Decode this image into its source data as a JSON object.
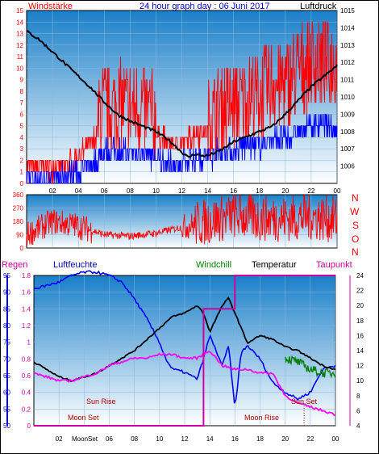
{
  "header": {
    "title": "24 hour graph day : 06 Juni 2017",
    "left_label": "Windstärke",
    "right_label": "Luftdruck"
  },
  "compass": [
    "N",
    "W",
    "S",
    "O",
    "N"
  ],
  "legend": {
    "regen": "Regen",
    "luftfeuchte": "Luftfeuchte",
    "windchill": "Windchill",
    "temperatur": "Temperatur",
    "taupunkt": "Taupunkt"
  },
  "annotations": {
    "sun_rise": "Sun Rise",
    "sun_set": "Sun Set",
    "moon_set": "Moon Set",
    "moon_rise": "Moon Rise",
    "moonset_axis": "MoonSet"
  },
  "colors": {
    "sky_top": "#1a7fc8",
    "sky_bottom": "#ffffff",
    "wind_gust": "#ff0000",
    "wind_avg": "#0000ff",
    "pressure": "#000000",
    "direction": "#ff0000",
    "humidity": "#0000ff",
    "temperature": "#000000",
    "dewpoint": "#ff00ff",
    "windchill": "#008000",
    "rain": "#d000a0"
  },
  "chart_data": [
    {
      "type": "line",
      "name": "wind_pressure",
      "x_ticks": [
        "02",
        "04",
        "06",
        "08",
        "10",
        "12",
        "14",
        "16",
        "18",
        "20",
        "22",
        "00"
      ],
      "ylim_left": [
        0,
        15
      ],
      "yticks_left": [
        0,
        1,
        2,
        3,
        4,
        5,
        6,
        7,
        8,
        9,
        10,
        11,
        12,
        13,
        14,
        15
      ],
      "ylim_right": [
        1005,
        1015
      ],
      "yticks_right": [
        1006,
        1007,
        1008,
        1009,
        1010,
        1011,
        1012,
        1013,
        1014,
        1015
      ],
      "series": [
        {
          "name": "Windstärke",
          "x": [
            0,
            1,
            2,
            3,
            4,
            5,
            6,
            7,
            8,
            9,
            10,
            11,
            12,
            13,
            14,
            15,
            16,
            17,
            18,
            19,
            20,
            21,
            22,
            23,
            24
          ],
          "y": [
            1,
            1,
            1,
            1,
            2,
            3,
            5,
            5,
            5,
            5,
            4,
            3,
            3,
            4,
            4,
            5,
            5,
            6,
            6,
            7,
            7,
            8,
            9,
            9,
            9
          ]
        },
        {
          "name": "Luftdruck",
          "x": [
            0,
            1,
            2,
            3,
            4,
            5,
            6,
            7,
            8,
            9,
            10,
            11,
            12,
            12.5,
            13,
            13.5,
            14,
            15,
            16,
            17,
            18,
            19,
            20,
            21,
            22,
            23,
            24
          ],
          "y": [
            1013.8,
            1013.3,
            1012.6,
            1011.9,
            1011.2,
            1010.5,
            1009.7,
            1009.0,
            1008.6,
            1008.3,
            1008.0,
            1007.5,
            1006.8,
            1006.5,
            1006.7,
            1006.6,
            1006.6,
            1006.9,
            1007.4,
            1007.7,
            1008.0,
            1008.3,
            1009.0,
            1009.8,
            1010.6,
            1011.2,
            1011.8
          ]
        }
      ]
    },
    {
      "type": "line",
      "name": "wind_direction",
      "ylim": [
        0,
        360
      ],
      "yticks": [
        0,
        90,
        180,
        270,
        360
      ],
      "series": [
        {
          "name": "Windrichtung",
          "x": [
            0,
            2,
            4,
            6,
            8,
            10,
            12,
            14,
            16,
            18,
            20,
            22,
            24
          ],
          "y": [
            90,
            180,
            150,
            90,
            80,
            100,
            140,
            180,
            220,
            200,
            200,
            210,
            190
          ]
        }
      ]
    },
    {
      "type": "line",
      "name": "temp_humidity",
      "ylim_humidity": [
        50,
        95
      ],
      "yticks_humidity": [
        50,
        55,
        60,
        65,
        70,
        75,
        80,
        85,
        90,
        95
      ],
      "ylim_rain": [
        0,
        1.8
      ],
      "yticks_rain": [
        0,
        0.2,
        0.4,
        0.6,
        0.8,
        1,
        1.2,
        1.4,
        1.6,
        1.8
      ],
      "ylim_temp": [
        4,
        24
      ],
      "yticks_temp": [
        4,
        6,
        8,
        10,
        12,
        14,
        16,
        18,
        20,
        22,
        24
      ],
      "series": [
        {
          "name": "Luftfeuchte",
          "x": [
            0,
            1,
            2,
            3,
            4,
            5,
            6,
            7,
            8,
            9,
            10,
            10.5,
            11,
            12,
            13,
            13.5,
            14,
            15,
            15.5,
            16,
            16.5,
            17,
            18,
            19,
            20,
            21,
            22,
            23,
            24
          ],
          "y": [
            91,
            92,
            93,
            95,
            96,
            96,
            95,
            93,
            88,
            82,
            75,
            70,
            67,
            66,
            64,
            70,
            77,
            68,
            74,
            55,
            72,
            74,
            70,
            63,
            60,
            58,
            60,
            67,
            68
          ]
        },
        {
          "name": "Temperatur",
          "x": [
            0,
            1,
            2,
            3,
            4,
            5,
            6,
            7,
            8,
            9,
            10,
            11,
            12,
            13,
            13.5,
            14,
            15,
            15.5,
            16,
            17,
            18,
            19,
            20,
            21,
            22,
            23,
            24
          ],
          "y": [
            12.5,
            11.5,
            10.5,
            10,
            10.5,
            11,
            12,
            13,
            14,
            15.5,
            17,
            18.5,
            19,
            20,
            19,
            16.5,
            20,
            21,
            19,
            15,
            16,
            15.5,
            14.5,
            14,
            13,
            12,
            11.5
          ]
        },
        {
          "name": "Taupunkt",
          "x": [
            0,
            1,
            2,
            3,
            4,
            5,
            6,
            7,
            8,
            9,
            10,
            11,
            12,
            13,
            14,
            15,
            16,
            17,
            18,
            19,
            20,
            21,
            22,
            23,
            24
          ],
          "y": [
            11,
            10.5,
            10,
            10,
            10.5,
            11,
            12,
            12.5,
            13,
            13,
            13.5,
            13.5,
            13,
            13,
            14,
            12,
            11.5,
            11.5,
            11,
            11,
            8,
            7,
            6.5,
            6,
            5.5
          ]
        },
        {
          "name": "Windchill",
          "x": [
            20,
            21,
            22,
            23,
            24
          ],
          "y": [
            13,
            12.5,
            11.5,
            11,
            11
          ]
        },
        {
          "name": "Regen",
          "x": [
            0,
            13.5,
            13.5,
            14,
            14,
            16,
            16,
            17,
            18,
            20,
            22,
            24
          ],
          "y": [
            0,
            0,
            1.4,
            1.4,
            1.4,
            1.4,
            1.8,
            1.8,
            1.8,
            1.8,
            1.8,
            1.8
          ]
        }
      ]
    }
  ]
}
